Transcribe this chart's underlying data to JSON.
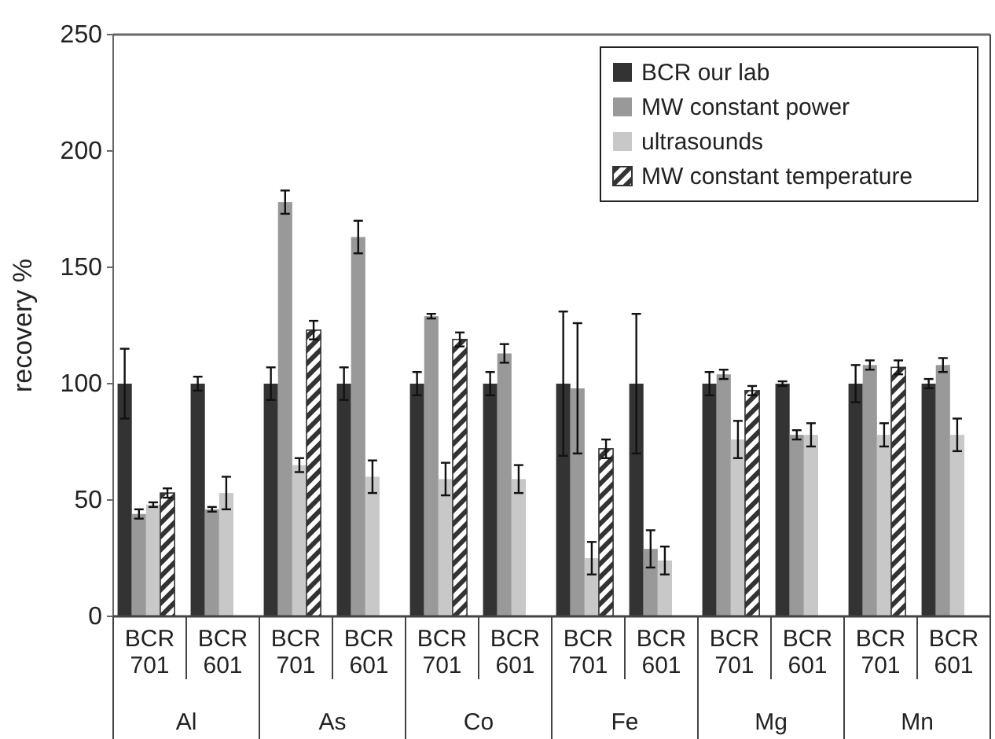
{
  "chart_data": {
    "type": "bar",
    "ylabel": "recovery %",
    "categories": [
      "BCR 701",
      "BCR 601",
      "BCR 701",
      "BCR 601",
      "BCR 701",
      "BCR 601",
      "BCR 701",
      "BCR 601",
      "BCR 701",
      "BCR 601",
      "BCR 701",
      "BCR 601"
    ],
    "annotations": [
      "Al",
      "As",
      "Co",
      "Fe",
      "Mg",
      "Mn"
    ],
    "ylim": [
      0,
      250
    ],
    "yticks": [
      0,
      50,
      100,
      150,
      200,
      250
    ],
    "legend": "top right",
    "series": [
      {
        "name": "BCR our lab",
        "color": "#333333",
        "values": [
          100,
          100,
          100,
          100,
          100,
          100,
          100,
          100,
          100,
          100,
          100,
          100
        ],
        "errors": [
          15,
          3,
          7,
          7,
          5,
          5,
          31,
          30,
          5,
          1,
          8,
          2
        ]
      },
      {
        "name": "MW constant power",
        "color": "#999999",
        "values": [
          44,
          46,
          178,
          163,
          129,
          113,
          98,
          29,
          104,
          78,
          108,
          108
        ],
        "errors": [
          2,
          1,
          5,
          7,
          1,
          4,
          28,
          8,
          2,
          2,
          2,
          3
        ]
      },
      {
        "name": "ultrasounds",
        "color": "#c8c8c8",
        "values": [
          48,
          53,
          65,
          60,
          59,
          59,
          25,
          24,
          76,
          78,
          78,
          78
        ],
        "errors": [
          1,
          7,
          3,
          7,
          7,
          6,
          7,
          6,
          8,
          5,
          5,
          7
        ]
      },
      {
        "name": "MW constant temperature",
        "color": "#333333",
        "values": [
          53,
          null,
          123,
          null,
          119,
          null,
          72,
          null,
          97,
          null,
          107,
          null
        ],
        "errors": [
          2,
          null,
          4,
          null,
          3,
          null,
          4,
          null,
          2,
          null,
          3,
          null
        ]
      }
    ]
  }
}
